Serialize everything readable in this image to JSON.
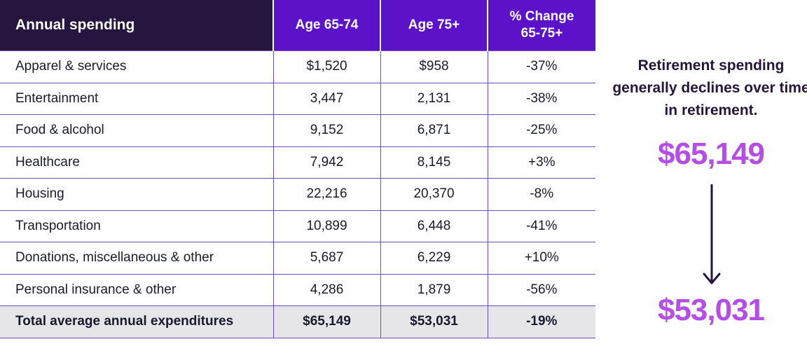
{
  "table": {
    "headers": [
      "Annual spending",
      "Age 65-74",
      "Age 75+",
      "% Change\n65-75+"
    ],
    "header_line1_col4": "% Change",
    "header_line2_col4": "65-75+",
    "rows": [
      [
        "Apparel & services",
        "$1,520",
        "$958",
        "-37%"
      ],
      [
        "Entertainment",
        "3,447",
        "2,131",
        "-38%"
      ],
      [
        "Food & alcohol",
        "9,152",
        "6,871",
        "-25%"
      ],
      [
        "Healthcare",
        "7,942",
        "8,145",
        "+3%"
      ],
      [
        "Housing",
        "22,216",
        "20,370",
        "-8%"
      ],
      [
        "Transportation",
        "10,899",
        "6,448",
        "-41%"
      ],
      [
        "Donations, miscellaneous & other",
        "5,687",
        "6,229",
        "+10%"
      ],
      [
        "Personal insurance & other",
        "4,286",
        "1,879",
        "-56%"
      ]
    ],
    "total": [
      "Total average annual expenditures",
      "$65,149",
      "$53,031",
      "-19%"
    ]
  },
  "side": {
    "text": "Retirement spending generally declines over time in retirement.",
    "from_amount": "$65,149",
    "to_amount": "$53,031"
  },
  "colors": {
    "header_dark": "#24163f",
    "header_purple": "#5b12c8",
    "amount_accent": "#b44ee6",
    "total_row_bg": "#e6e6e8"
  },
  "icons": [
    "down-arrow-icon"
  ]
}
